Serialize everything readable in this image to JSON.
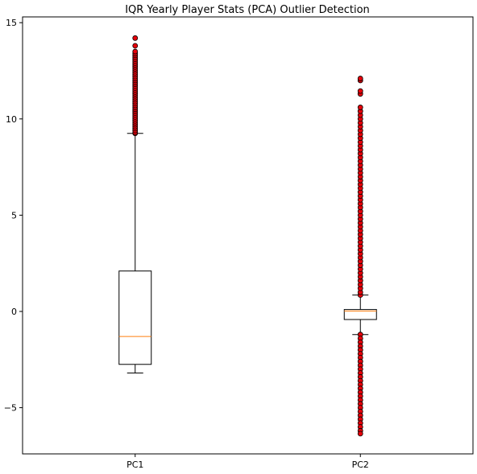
{
  "chart_data": {
    "type": "boxplot",
    "title": "IQR Yearly Player Stats (PCA) Outlier Detection",
    "xlabel": "",
    "ylabel": "",
    "categories": [
      "PC1",
      "PC2"
    ],
    "ylim": [
      -7.4,
      15.3
    ],
    "yticks": [
      -5,
      0,
      5,
      10,
      15
    ],
    "ytick_labels": [
      "−5",
      "0",
      "5",
      "10",
      "15"
    ],
    "grid": false,
    "outlier_color": "#e8000b",
    "median_color": "#ff7f0e",
    "boxes": [
      {
        "name": "PC1",
        "q1": -2.75,
        "median": -1.3,
        "q3": 2.1,
        "whisker_low": -3.2,
        "whisker_high": 9.25,
        "outliers": [
          9.25,
          9.3,
          9.4,
          9.5,
          9.6,
          9.7,
          9.8,
          9.9,
          10.0,
          10.1,
          10.2,
          10.3,
          10.4,
          10.5,
          10.6,
          10.7,
          10.8,
          10.9,
          11.0,
          11.1,
          11.2,
          11.3,
          11.4,
          11.5,
          11.6,
          11.7,
          11.8,
          11.9,
          12.0,
          12.1,
          12.2,
          12.3,
          12.4,
          12.5,
          12.6,
          12.7,
          12.8,
          12.9,
          13.0,
          13.1,
          13.2,
          13.3,
          13.4,
          13.5,
          13.8,
          14.2
        ]
      },
      {
        "name": "PC2",
        "q1": -0.42,
        "median": 0.02,
        "q3": 0.1,
        "whisker_low": -1.2,
        "whisker_high": 0.85,
        "outliers": [
          0.85,
          1.0,
          1.2,
          1.4,
          1.6,
          1.8,
          2.0,
          2.2,
          2.4,
          2.6,
          2.8,
          3.0,
          3.2,
          3.4,
          3.6,
          3.8,
          4.0,
          4.2,
          4.4,
          4.6,
          4.8,
          5.0,
          5.2,
          5.4,
          5.6,
          5.8,
          6.0,
          6.2,
          6.4,
          6.6,
          6.8,
          7.0,
          7.2,
          7.4,
          7.6,
          7.8,
          8.0,
          8.2,
          8.4,
          8.6,
          8.8,
          9.0,
          9.2,
          9.4,
          9.6,
          9.8,
          10.0,
          10.2,
          10.4,
          10.6,
          11.3,
          11.45,
          12.0,
          12.1,
          -1.2,
          -1.4,
          -1.6,
          -1.8,
          -2.0,
          -2.2,
          -2.4,
          -2.6,
          -2.8,
          -3.0,
          -3.2,
          -3.4,
          -3.6,
          -3.8,
          -4.0,
          -4.2,
          -4.4,
          -4.6,
          -4.8,
          -5.0,
          -5.2,
          -5.4,
          -5.6,
          -5.8,
          -6.0,
          -6.2,
          -6.35
        ]
      }
    ]
  }
}
